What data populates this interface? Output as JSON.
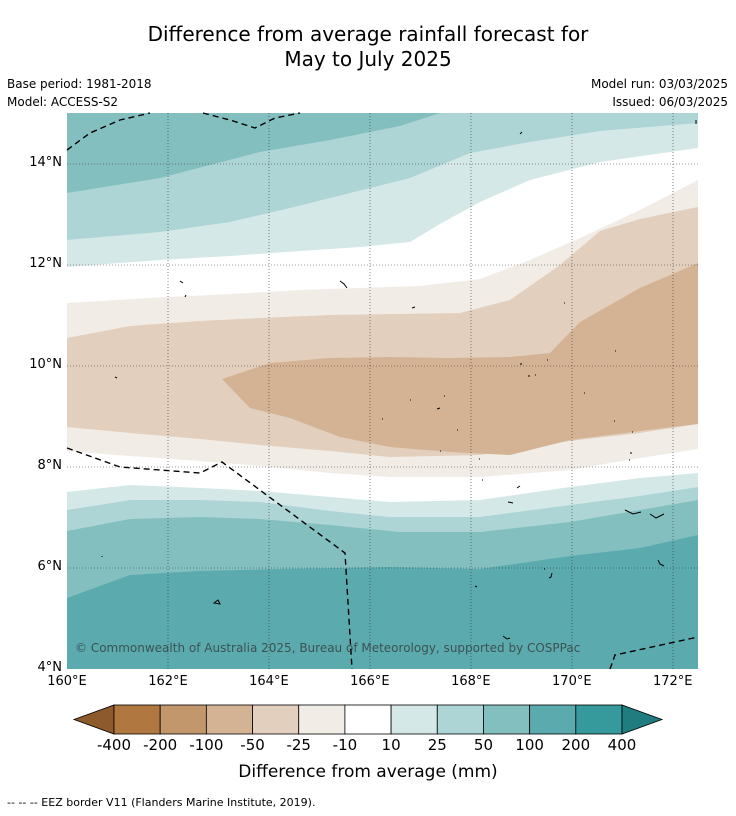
{
  "title_line1": "Difference from average rainfall forecast for",
  "title_line2": "May to July 2025",
  "base_period": "Base period: 1981-2018",
  "model": "Model: ACCESS-S2",
  "model_run": "Model run: 03/03/2025",
  "issued": "Issued: 06/03/2025",
  "copyright": "© Commonwealth of Australia 2025, Bureau of Meteorology, supported by COSPPac",
  "colorbar_title": "Difference from average (mm)",
  "footnote": "-- -- -- EEZ border V11 (Flanders Marine Institute, 2019).",
  "chart_data": {
    "type": "heatmap",
    "lon_range": [
      160,
      172.5
    ],
    "lat_range": [
      4,
      15
    ],
    "x_ticks": [
      "160°E",
      "162°E",
      "164°E",
      "166°E",
      "168°E",
      "170°E",
      "172°E"
    ],
    "y_ticks": [
      "4°N",
      "6°N",
      "8°N",
      "10°N",
      "12°N",
      "14°N"
    ],
    "grid": true,
    "colorbar": {
      "bounds": [
        "-400",
        "-200",
        "-100",
        "-50",
        "-25",
        "-10",
        "10",
        "25",
        "50",
        "100",
        "200",
        "400"
      ],
      "colors": [
        "#8c5a2b",
        "#b07840",
        "#c2976b",
        "#d4b394",
        "#e3cfbd",
        "#f1ece6",
        "#ffffff",
        "#d5e8e8",
        "#aed5d5",
        "#84bfc0",
        "#5babae",
        "#369a9c",
        "#1f7d80"
      ]
    }
  }
}
